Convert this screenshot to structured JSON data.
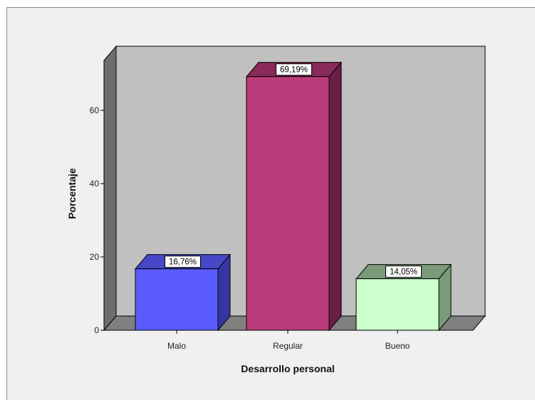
{
  "chart_data": {
    "type": "bar",
    "style": "3d",
    "categories": [
      "Malo",
      "Regular",
      "Bueno"
    ],
    "values": [
      16.76,
      69.19,
      14.05
    ],
    "data_labels": [
      "16,76%",
      "69,19%",
      "14,05%"
    ],
    "xlabel": "Desarrollo personal",
    "ylabel": "Porcentaje",
    "yticks": [
      0,
      20,
      40,
      60
    ],
    "ylim": [
      0,
      73.4
    ],
    "grid": false,
    "legend": "none",
    "colors": {
      "bars": [
        {
          "front": "#5a5cff",
          "top": "#4648c8",
          "side": "#3537a0"
        },
        {
          "front": "#bb3c7a",
          "top": "#8a2a5a",
          "side": "#6a1f45"
        },
        {
          "front": "#ccffcc",
          "top": "#7a9a7a",
          "side": "#7a9a7a"
        }
      ],
      "wall": "#c0c0c0",
      "side_wall": "#6e6e6e",
      "floor": "#808080",
      "frame_bg": "#f0f0f0"
    }
  }
}
